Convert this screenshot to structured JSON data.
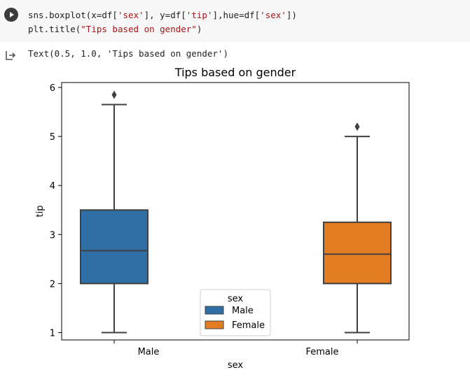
{
  "cell": {
    "code_line1": {
      "pre": "sns.boxplot(x=df[",
      "s1": "'sex'",
      "mid1": "], y=df[",
      "s2": "'tip'",
      "mid2": "],hue=df[",
      "s3": "'sex'",
      "post": "])"
    },
    "code_line2": {
      "pre": "plt.title(",
      "s1": "\"Tips based on gender\"",
      "post": ")"
    },
    "output_text": "Text(0.5, 1.0, 'Tips based on gender')"
  },
  "colors": {
    "male": "#2f6fa6",
    "female": "#e37d22",
    "lines": "#404040"
  },
  "chart_data": {
    "type": "box",
    "title": "Tips based on gender",
    "xlabel": "sex",
    "ylabel": "tip",
    "ylim": [
      0.85,
      6.1
    ],
    "yticks": [
      1,
      2,
      3,
      4,
      5,
      6
    ],
    "categories": [
      "Male",
      "Female"
    ],
    "boxes": [
      {
        "name": "Male",
        "whisker_low": 1.0,
        "q1": 2.0,
        "median": 2.67,
        "q3": 3.5,
        "whisker_high": 5.65,
        "outliers": [
          5.85
        ]
      },
      {
        "name": "Female",
        "whisker_low": 1.0,
        "q1": 2.0,
        "median": 2.6,
        "q3": 3.25,
        "whisker_high": 5.0,
        "outliers": [
          5.2
        ]
      }
    ],
    "legend": {
      "title": "sex",
      "entries": [
        "Male",
        "Female"
      ],
      "position": "lower-center"
    }
  }
}
